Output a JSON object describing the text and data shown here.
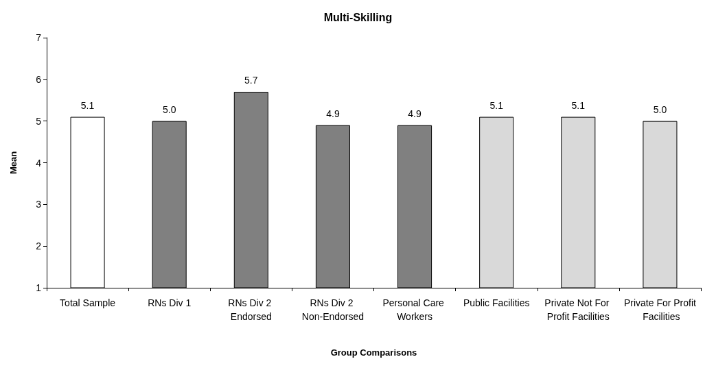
{
  "chart_data": {
    "type": "bar",
    "title": "Multi-Skilling",
    "xlabel": "Group Comparisons",
    "ylabel": "Mean",
    "categories": [
      "Total Sample",
      "RNs Div 1",
      "RNs Div 2 Endorsed",
      "RNs Div 2 Non-Endorsed",
      "Personal Care Workers",
      "Public Facilities",
      "Private Not For Profit Facilities",
      "Private For Profit Facilities"
    ],
    "values": [
      5.1,
      5.0,
      5.7,
      4.9,
      4.9,
      5.1,
      5.1,
      5.0
    ],
    "value_labels": [
      "5.1",
      "5.0",
      "5.7",
      "4.9",
      "4.9",
      "5.1",
      "5.1",
      "5.0"
    ],
    "colors": [
      "#ffffff",
      "#808080",
      "#808080",
      "#808080",
      "#808080",
      "#d9d9d9",
      "#d9d9d9",
      "#d9d9d9"
    ],
    "ylim": [
      1,
      7
    ],
    "yticks": [
      1,
      2,
      3,
      4,
      5,
      6,
      7
    ],
    "grid": false
  }
}
